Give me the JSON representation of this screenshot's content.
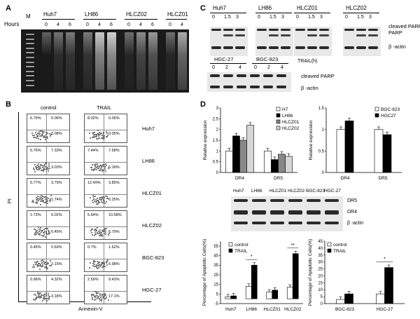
{
  "panelA": {
    "letter": "A",
    "hours_label": "Hours",
    "marker": "M",
    "groups": [
      {
        "name": "Huh7",
        "hours": [
          "0",
          "4",
          "6"
        ]
      },
      {
        "name": "LH86",
        "hours": [
          "0",
          "4",
          "6"
        ]
      },
      {
        "name": "HLCZ02",
        "hours": [
          "0",
          "4",
          "6"
        ]
      },
      {
        "name": "HLCZ01",
        "hours": [
          "0",
          "4"
        ]
      }
    ]
  },
  "panelB": {
    "letter": "B",
    "col_control": "control",
    "col_trail": "TRAIL",
    "ylabel": "PI",
    "xlabel": "Annexin-V",
    "rows": [
      {
        "cell": "Huh7",
        "control": [
          "6.79%",
          "0.06%",
          "0.08%",
          ""
        ],
        "trail": [
          "8.02%",
          "0.06%",
          "0.05%",
          ""
        ]
      },
      {
        "cell": "LH86",
        "control": [
          "5.76%",
          "7.33%",
          "",
          "3.03%"
        ],
        "trail": [
          "7.44%",
          "7.58%",
          "",
          "6.18%"
        ]
      },
      {
        "cell": "HLCZ01",
        "control": [
          "5.77%",
          "3.79%",
          "",
          "1.74%"
        ],
        "trail": [
          "12.49%",
          "3.85%",
          "",
          "6.25%"
        ]
      },
      {
        "cell": "HLCZ02",
        "control": [
          "1.73%",
          "6.02%",
          "",
          "6.45%"
        ],
        "trail": [
          "5.64%",
          "10.58%",
          "",
          "6.79%"
        ]
      },
      {
        "cell": "BGC-823",
        "control": [
          "0.45%",
          "0.69%",
          "",
          "2.15%"
        ],
        "trail": [
          "0.7%",
          "1.62%",
          "",
          "5.98%"
        ]
      },
      {
        "cell": "HGC-27",
        "control": [
          "0.96%",
          "4.32%",
          "",
          "3.18%"
        ],
        "trail": [
          "2.59%",
          "9.43%",
          "",
          "17.1%"
        ]
      }
    ]
  },
  "panelC": {
    "letter": "C",
    "top_groups": [
      {
        "name": "Huh7",
        "ticks": [
          "0",
          "1.5",
          "3"
        ]
      },
      {
        "name": "LH86",
        "ticks": [
          "0",
          "1.5",
          "3"
        ]
      },
      {
        "name": "HLCZ01",
        "ticks": [
          "0",
          "1.5",
          "3"
        ]
      },
      {
        "name": "HLCZ02",
        "ticks": [
          "0",
          "1.5",
          "3"
        ]
      }
    ],
    "bottom_groups": [
      {
        "name": "HGC-27",
        "ticks": [
          "0",
          "2",
          "4"
        ]
      },
      {
        "name": "BGC-823",
        "ticks": [
          "0",
          "2",
          "4"
        ]
      }
    ],
    "trail_label": "TRAIL(h)",
    "cleaved_parp_top": "cleaved PARP",
    "beta_actin": "β -actin",
    "cleaved_parp_bottom": "cleaved PARP",
    "beta_actin_bottom": "β -actin"
  },
  "panelD": {
    "letter": "D",
    "blot_lanes": [
      "Huh7",
      "LH86",
      "HLCZ01",
      "HLCZ02",
      "BGC-823",
      "HGC-27"
    ],
    "blot_rows": [
      "DR5",
      "DR4",
      "β -actin"
    ]
  },
  "chart_data": [
    {
      "type": "bar",
      "title": "",
      "ylabel": "Relative expression",
      "categories": [
        "DR4",
        "DR5"
      ],
      "ylim": [
        0,
        3
      ],
      "yticks": [
        "0",
        "0.5",
        "1",
        "1.5",
        "2",
        "2.5",
        "3"
      ],
      "series": [
        {
          "name": "H7",
          "values": [
            1.0,
            1.0
          ],
          "color": "#ffffff"
        },
        {
          "name": "LH86",
          "values": [
            1.7,
            0.6
          ],
          "color": "#000000"
        },
        {
          "name": "HLCZ01",
          "values": [
            1.5,
            0.85
          ],
          "color": "#888888"
        },
        {
          "name": "HLCZ02",
          "values": [
            2.2,
            0.75
          ],
          "color": "#d6d6d6"
        }
      ]
    },
    {
      "type": "bar",
      "title": "",
      "ylabel": "Relative expression",
      "categories": [
        "DR4",
        "DR5"
      ],
      "ylim": [
        0,
        1.5
      ],
      "yticks": [
        "0",
        "0.5",
        "1",
        "1.5"
      ],
      "series": [
        {
          "name": "BGC-823",
          "values": [
            1.0,
            1.0
          ],
          "color": "#ffffff"
        },
        {
          "name": "HGC27",
          "values": [
            1.2,
            0.88
          ],
          "color": "#000000"
        }
      ]
    },
    {
      "type": "bar",
      "title": "",
      "ylabel": "Percentage of Apoptotic Cells(%)",
      "categories": [
        "Huh7",
        "LH86",
        "HLCZ01",
        "HLCZ02"
      ],
      "ylim": [
        -5,
        60
      ],
      "yticks": [
        "-5",
        "5",
        "15",
        "25",
        "35",
        "45",
        "55"
      ],
      "series": [
        {
          "name": "control",
          "values": [
            2,
            13,
            7,
            12
          ],
          "color": "#ffffff"
        },
        {
          "name": "TRAIL",
          "values": [
            3,
            35,
            9,
            47
          ],
          "color": "#000000"
        }
      ],
      "annotations": [
        {
          "category": "LH86",
          "text": "*"
        },
        {
          "category": "HLCZ02",
          "text": "**"
        }
      ]
    },
    {
      "type": "bar",
      "title": "",
      "ylabel": "Percentage of Apoptotic Cells(%)",
      "categories": [
        "BGC-823",
        "HGC-27"
      ],
      "ylim": [
        0,
        45
      ],
      "yticks": [
        "0",
        "5",
        "10",
        "15",
        "20",
        "25",
        "30",
        "35",
        "40",
        "45"
      ],
      "series": [
        {
          "name": "control",
          "values": [
            3,
            7
          ],
          "color": "#ffffff"
        },
        {
          "name": "TRAIL",
          "values": [
            7,
            26
          ],
          "color": "#000000"
        }
      ],
      "annotations": [
        {
          "category": "HGC-27",
          "text": "*"
        }
      ]
    }
  ]
}
